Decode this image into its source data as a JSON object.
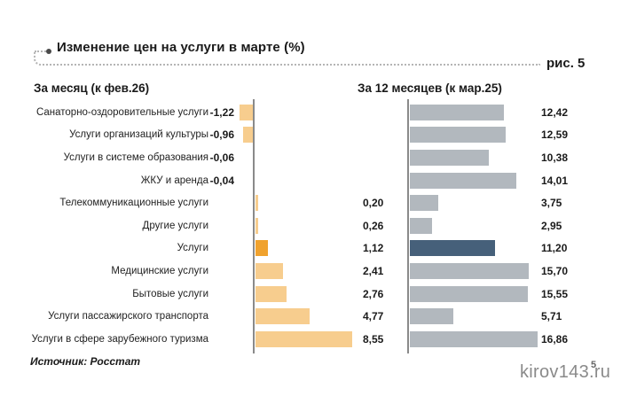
{
  "title": "Изменение цен на услуги в марте (%)",
  "figure_label": "рис. 5",
  "source": "Источник: Росстат",
  "watermark": "kirov143.ru",
  "page_number": "5",
  "panels": {
    "left_header": "За месяц (к фев.26)",
    "right_header": "За 12 месяцев (к мар.25)"
  },
  "colors": {
    "month_bar": "#F7CD8E",
    "month_bar_highlight": "#F0A22E",
    "year_bar": "#B2B8BE",
    "year_bar_highlight": "#46607A",
    "axis": "#8a8a8a",
    "text": "#1a1a1a",
    "watermark": "#8a8a8a"
  },
  "chart_data": {
    "type": "bar",
    "orientation": "horizontal",
    "title": "Изменение цен на услуги в марте (%)",
    "categories": [
      "Санаторно-оздоровительные услуги",
      "Услуги организаций культуры",
      "Услуги в системе образования",
      "ЖКУ и аренда",
      "Телекоммуникационные услуги",
      "Другие услуги",
      "Услуги",
      "Медицинские услуги",
      "Бытовые услуги",
      "Услуги пассажирского транспорта",
      "Услуги в сфере зарубежного туризма"
    ],
    "series": [
      {
        "name": "За месяц (к фев.26)",
        "values": [
          -1.22,
          -0.96,
          -0.06,
          -0.04,
          0.2,
          0.26,
          1.12,
          2.41,
          2.76,
          4.77,
          8.55
        ],
        "value_labels": [
          "-1,22",
          "-0,96",
          "-0,06",
          "-0,04",
          "0,20",
          "0,26",
          "1,12",
          "2,41",
          "2,76",
          "4,77",
          "8,55"
        ]
      },
      {
        "name": "За 12 месяцев (к мар.25)",
        "values": [
          12.42,
          12.59,
          10.38,
          14.01,
          3.75,
          2.95,
          11.2,
          15.7,
          15.55,
          5.71,
          16.86
        ],
        "value_labels": [
          "12,42",
          "12,59",
          "10,38",
          "14,01",
          "3,75",
          "2,95",
          "11,20",
          "15,70",
          "15,55",
          "5,71",
          "16,86"
        ]
      }
    ],
    "highlight_category": "Услуги",
    "highlight_index": 6,
    "grid": false,
    "legend": false,
    "data_labels": "outside-end"
  }
}
